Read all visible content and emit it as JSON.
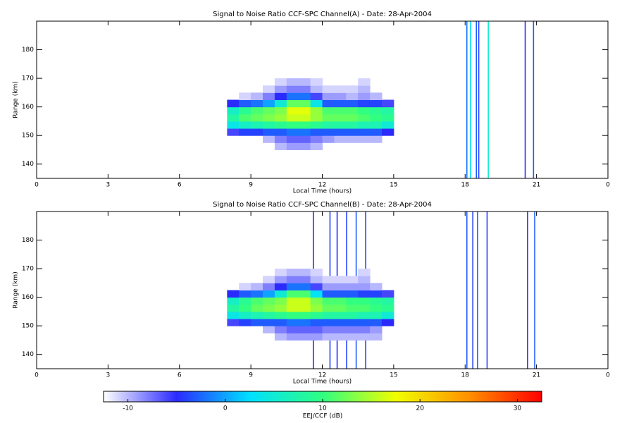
{
  "chart_data": [
    {
      "type": "heatmap",
      "title": "Signal to Noise Ratio CCF-SPC Channel(A) - Date: 28-Apr-2004",
      "x_label": "Local Time (hours)",
      "y_label": "Range (km)",
      "xlim": [
        0,
        24
      ],
      "xticks": [
        0,
        3,
        6,
        9,
        12,
        15,
        18,
        21,
        {
          "value": 24,
          "label": "0"
        }
      ],
      "ylim": [
        135,
        190
      ],
      "yticks": [
        140,
        150,
        160,
        170,
        180
      ],
      "x_bins": [
        8,
        8.5,
        9,
        9.5,
        10,
        10.5,
        11,
        11.5,
        12,
        12.5,
        13,
        13.5,
        14,
        14.5,
        15
      ],
      "y_bins": [
        145,
        147.5,
        150,
        152.5,
        155,
        157.5,
        160,
        162.5,
        165,
        167.5,
        170
      ],
      "z": [
        [
          null,
          null,
          null,
          null,
          -10,
          -9,
          -9,
          -10,
          null,
          null,
          null,
          null,
          null,
          null
        ],
        [
          null,
          null,
          null,
          -10,
          -8,
          -7,
          -7,
          -8,
          -9,
          -10,
          -10,
          -10,
          -10,
          null
        ],
        [
          -6,
          -4,
          -4,
          -3,
          -3,
          -2,
          -2,
          -3,
          -3,
          -3,
          -3,
          -3,
          -3,
          -5
        ],
        [
          4,
          6,
          7,
          8,
          9,
          10,
          10,
          9,
          8,
          8,
          8,
          7,
          7,
          5
        ],
        [
          8,
          11,
          12,
          13,
          14,
          16,
          16,
          14,
          12,
          12,
          12,
          11,
          10,
          9
        ],
        [
          6,
          9,
          11,
          12,
          13,
          17,
          17,
          14,
          11,
          11,
          11,
          10,
          9,
          8
        ],
        [
          -5,
          -3,
          -2,
          0,
          5,
          12,
          12,
          4,
          -3,
          -3,
          -3,
          -4,
          -4,
          -6
        ],
        [
          null,
          -11,
          -10,
          -8,
          -5,
          -2,
          -2,
          -6,
          -9,
          -9,
          -10,
          -9,
          -10,
          null
        ],
        [
          null,
          null,
          null,
          -11,
          -9,
          -8,
          -8,
          -10,
          -11,
          -11,
          -11,
          -10,
          null,
          null
        ],
        [
          null,
          null,
          null,
          null,
          -11,
          -10,
          -10,
          -11,
          null,
          null,
          null,
          -11,
          null,
          null
        ]
      ],
      "stripes": {
        "x": [
          18.05,
          18.2,
          18.45,
          18.55,
          18.95,
          20.5,
          20.85
        ],
        "values": [
          -2,
          3,
          -3,
          -4,
          5,
          -5,
          -3
        ]
      }
    },
    {
      "type": "heatmap",
      "title": "Signal to Noise Ratio CCF-SPC Channel(B) - Date: 28-Apr-2004",
      "x_label": "Local Time (hours)",
      "y_label": "Range (km)",
      "xlim": [
        0,
        24
      ],
      "xticks": [
        0,
        3,
        6,
        9,
        12,
        15,
        18,
        21,
        {
          "value": 24,
          "label": "0"
        }
      ],
      "ylim": [
        135,
        190
      ],
      "yticks": [
        140,
        150,
        160,
        170,
        180
      ],
      "x_bins": [
        8,
        8.5,
        9,
        9.5,
        10,
        10.5,
        11,
        11.5,
        12,
        12.5,
        13,
        13.5,
        14,
        14.5,
        15
      ],
      "y_bins": [
        145,
        147.5,
        150,
        152.5,
        155,
        157.5,
        160,
        162.5,
        165,
        167.5,
        170
      ],
      "z": [
        [
          null,
          null,
          null,
          null,
          -10,
          -9,
          -9,
          -9,
          -10,
          -10,
          -10,
          -10,
          -10,
          null
        ],
        [
          null,
          null,
          null,
          -10,
          -8,
          -7,
          -7,
          -7,
          -8,
          -8,
          -8,
          -8,
          -9,
          null
        ],
        [
          -6,
          -4,
          -3,
          -3,
          -3,
          -2,
          -2,
          -3,
          -3,
          -3,
          -3,
          -3,
          -3,
          -5
        ],
        [
          4,
          6,
          7,
          8,
          9,
          10,
          10,
          9,
          8,
          8,
          8,
          7,
          7,
          5
        ],
        [
          8,
          10,
          12,
          13,
          14,
          16,
          16,
          14,
          12,
          12,
          11,
          11,
          10,
          9
        ],
        [
          6,
          9,
          11,
          12,
          13,
          16,
          16,
          13,
          11,
          11,
          10,
          10,
          9,
          8
        ],
        [
          -5,
          -3,
          -2,
          0,
          5,
          11,
          11,
          3,
          -3,
          -3,
          -3,
          -4,
          -4,
          -6
        ],
        [
          null,
          -11,
          -10,
          -8,
          -5,
          -2,
          -2,
          -6,
          -9,
          -9,
          -9,
          -9,
          -10,
          null
        ],
        [
          null,
          null,
          null,
          -11,
          -9,
          -8,
          -8,
          -10,
          -11,
          -11,
          -11,
          -10,
          null,
          null
        ],
        [
          null,
          null,
          null,
          null,
          -11,
          -10,
          -10,
          -11,
          null,
          null,
          null,
          -11,
          null,
          null
        ]
      ],
      "stripes": {
        "x": [
          11.6,
          12.3,
          12.6,
          13.0,
          13.4,
          13.8,
          18.05,
          18.3,
          18.5,
          18.9,
          20.6,
          20.9
        ],
        "values": [
          -5,
          -4,
          -5,
          -4,
          -3,
          -4,
          -3,
          -4,
          -3,
          -4,
          -5,
          -3
        ]
      }
    }
  ],
  "colorbar": {
    "label": "EEJ/CCF (dB)",
    "clim": [
      -12.5,
      32.5
    ],
    "ticks": [
      -10,
      0,
      10,
      20,
      30
    ],
    "colormap": [
      "#ffffff",
      "#2a2aff",
      "#00e0ff",
      "#30ff80",
      "#f0ff00",
      "#ff9000",
      "#ff0000"
    ]
  }
}
